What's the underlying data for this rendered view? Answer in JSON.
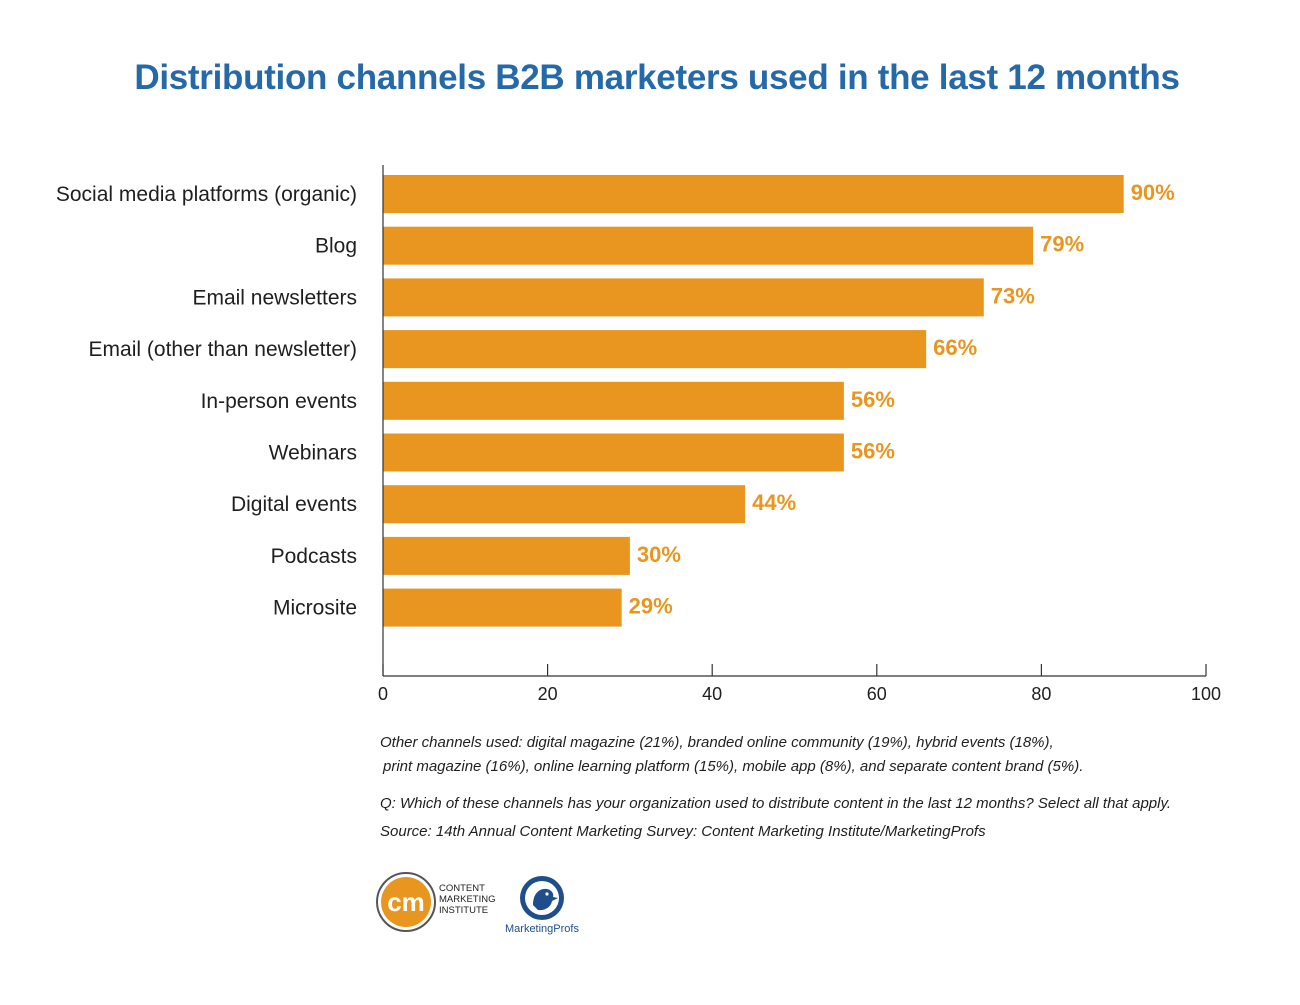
{
  "chart_data": {
    "type": "bar",
    "orientation": "horizontal",
    "title": "Distribution channels B2B marketers used in the last 12 months",
    "categories": [
      "Social media platforms (organic)",
      "Blog",
      "Email newsletters",
      "Email (other than newsletter)",
      "In-person events",
      "Webinars",
      "Digital events",
      "Podcasts",
      "Microsite"
    ],
    "values": [
      90,
      79,
      73,
      66,
      56,
      56,
      44,
      30,
      29
    ],
    "data_labels": [
      "90%",
      "79%",
      "73%",
      "66%",
      "56%",
      "56%",
      "44%",
      "30%",
      "29%"
    ],
    "xlim": [
      0,
      100
    ],
    "x_ticks": [
      "0",
      "20",
      "40",
      "60",
      "80",
      "100"
    ],
    "xlabel": "",
    "ylabel": "",
    "grid": false,
    "legend": "none"
  },
  "colors": {
    "bar": "#E8961F",
    "label": "#E8961F",
    "title": "#2569A8",
    "axis": "#333333",
    "text": "#1f1f1f"
  },
  "notes": {
    "other_line1": "Other channels used: digital magazine (21%), branded online community (19%), hybrid events (18%),",
    "other_line2": "print magazine (16%), online learning platform (15%), mobile app (8%), and separate content brand (5%).",
    "question": "Q: Which of these channels has your organization used to distribute content in the last 12 months? Select all that apply.",
    "source": "Source: 14th Annual Content Marketing Survey: Content Marketing Institute/MarketingProfs"
  },
  "logos": {
    "cmi_monogram": "cm",
    "cmi_line1": "CONTENT",
    "cmi_line2": "MARKETING",
    "cmi_line3": "INSTITUTE",
    "mprofs_name": "MarketingProfs",
    "cmi_icon": "cmi-circle-logo-icon",
    "mprofs_icon": "bird-logo-icon"
  }
}
